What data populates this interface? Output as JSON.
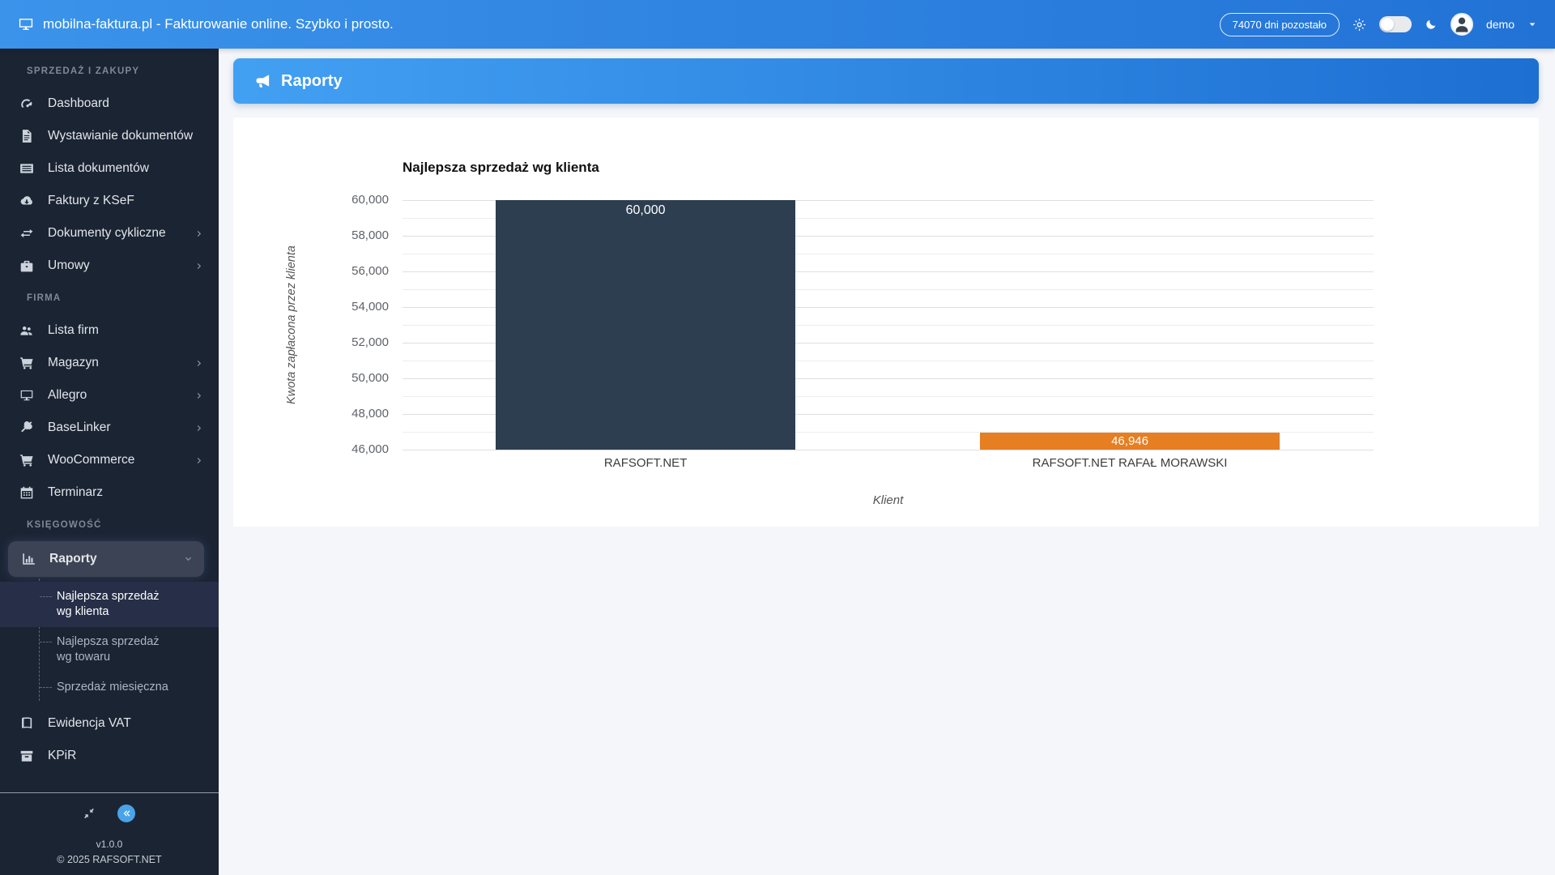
{
  "header": {
    "title": "mobilna-faktura.pl - Fakturowanie online. Szybko i prosto.",
    "badge": "74070 dni pozostało",
    "user": "demo"
  },
  "page": {
    "banner_title": "Raporty"
  },
  "sidebar": {
    "sections": [
      {
        "label": "SPRZEDAŻ I ZAKUPY",
        "items": [
          {
            "label": "Dashboard",
            "icon": "gauge-icon"
          },
          {
            "label": "Wystawianie dokumentów",
            "icon": "file-icon"
          },
          {
            "label": "Lista dokumentów",
            "icon": "list-icon"
          },
          {
            "label": "Faktury z KSeF",
            "icon": "cloud-download-icon"
          },
          {
            "label": "Dokumenty cykliczne",
            "icon": "repeat-icon",
            "chevron": true
          },
          {
            "label": "Umowy",
            "icon": "briefcase-icon",
            "chevron": true
          }
        ]
      },
      {
        "label": "FIRMA",
        "items": [
          {
            "label": "Lista firm",
            "icon": "users-icon"
          },
          {
            "label": "Magazyn",
            "icon": "cart-icon",
            "chevron": true
          },
          {
            "label": "Allegro",
            "icon": "monitor-icon",
            "chevron": true
          },
          {
            "label": "BaseLinker",
            "icon": "plug-icon",
            "chevron": true
          },
          {
            "label": "WooCommerce",
            "icon": "cart-icon",
            "chevron": true
          },
          {
            "label": "Terminarz",
            "icon": "calendar-icon"
          }
        ]
      },
      {
        "label": "KSIĘGOWOŚĆ",
        "items": [
          {
            "label": "Raporty",
            "icon": "chart-bar-icon",
            "active": true,
            "expanded": true,
            "submenu": [
              {
                "label": "Najlepsza sprzedaż wg klienta",
                "active": true
              },
              {
                "label": "Najlepsza sprzedaż wg towaru",
                "active": false
              },
              {
                "label": "Sprzedaż miesięczna",
                "active": false
              }
            ]
          },
          {
            "label": "Ewidencja VAT",
            "icon": "book-icon"
          },
          {
            "label": "KPiR",
            "icon": "archive-icon"
          }
        ]
      }
    ],
    "footer": {
      "version": "v1.0.0",
      "copyright": "© 2025 RAFSOFT.NET"
    }
  },
  "chart_data": {
    "type": "bar",
    "title": "Najlepsza sprzedaż wg klienta",
    "xlabel": "Klient",
    "ylabel": "Kwota zapłacona przez klienta",
    "categories": [
      "RAFSOFT.NET",
      "RAFSOFT.NET RAFAŁ MORAWSKI"
    ],
    "values": [
      60000,
      46946
    ],
    "value_labels": [
      "60,000",
      "46,946"
    ],
    "bar_colors": [
      "#2c3e50",
      "#e67e22"
    ],
    "ylim": [
      46000,
      60000
    ],
    "ytick_step": 2000,
    "minor_tick_step": 1000,
    "ytick_labels": [
      "46,000",
      "48,000",
      "50,000",
      "52,000",
      "54,000",
      "56,000",
      "58,000",
      "60,000"
    ],
    "grid": true,
    "legend": false
  },
  "colors": {
    "header_blue": "#2e80dd",
    "banner_blue": "#2f8ae6",
    "sidebar_bg": "#1b2433",
    "active_pill": "#3c4354",
    "bar_navy": "#2c3e50",
    "bar_orange": "#e67e22",
    "page_bg": "#f4f6fa"
  }
}
